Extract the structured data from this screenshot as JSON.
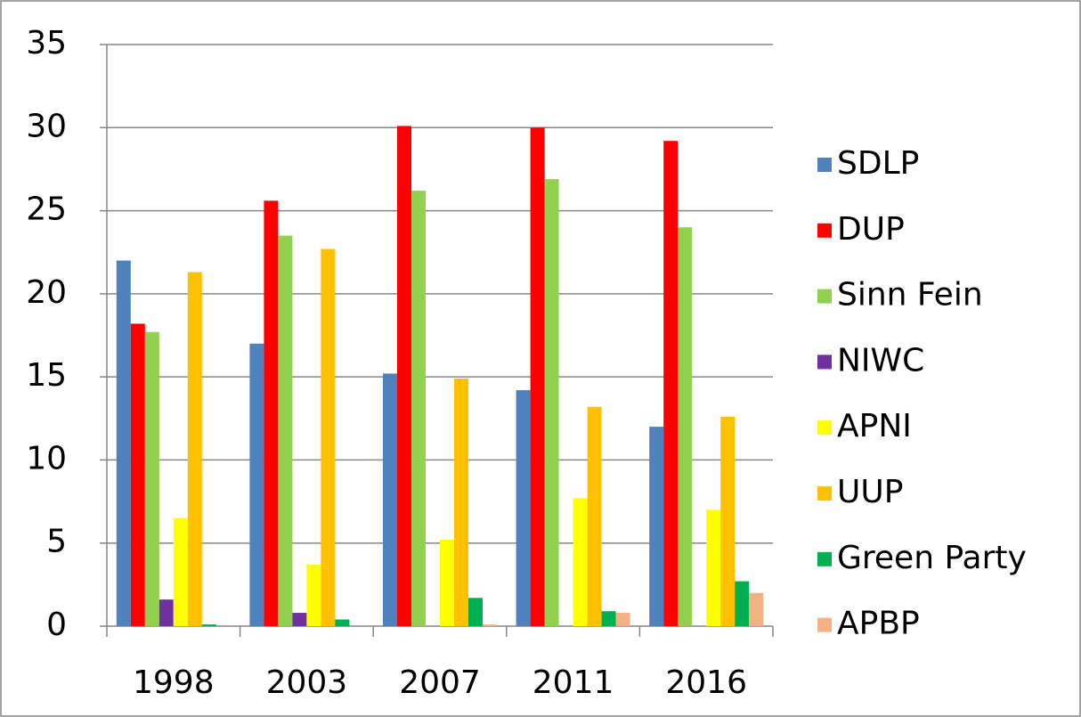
{
  "chart_data": {
    "type": "bar",
    "categories": [
      "1998",
      "2003",
      "2007",
      "2011",
      "2016"
    ],
    "series": [
      {
        "name": "SDLP",
        "color": "#4f81bd",
        "values": [
          22.0,
          17.0,
          15.2,
          14.2,
          12.0
        ]
      },
      {
        "name": "DUP",
        "color": "#ff0000",
        "values": [
          18.2,
          25.6,
          30.1,
          30.0,
          29.2
        ]
      },
      {
        "name": "Sinn Fein",
        "color": "#92d050",
        "values": [
          17.7,
          23.5,
          26.2,
          26.9,
          24.0
        ]
      },
      {
        "name": "NIWC",
        "color": "#7030a0",
        "values": [
          1.6,
          0.8,
          null,
          null,
          null
        ]
      },
      {
        "name": "APNI",
        "color": "#ffff00",
        "values": [
          6.5,
          3.7,
          5.2,
          7.7,
          7.0
        ]
      },
      {
        "name": "UUP",
        "color": "#ffc000",
        "values": [
          21.3,
          22.7,
          14.9,
          13.2,
          12.6
        ]
      },
      {
        "name": "Green Party",
        "color": "#00b050",
        "values": [
          0.1,
          0.4,
          1.7,
          0.9,
          2.7
        ]
      },
      {
        "name": "APBP",
        "color": "#f4b183",
        "values": [
          null,
          null,
          0.1,
          0.8,
          2.0
        ]
      }
    ],
    "ylim": [
      0,
      35
    ],
    "yticks": [
      0,
      5,
      10,
      15,
      20,
      25,
      30,
      35
    ],
    "grid": true,
    "legend": "right"
  }
}
